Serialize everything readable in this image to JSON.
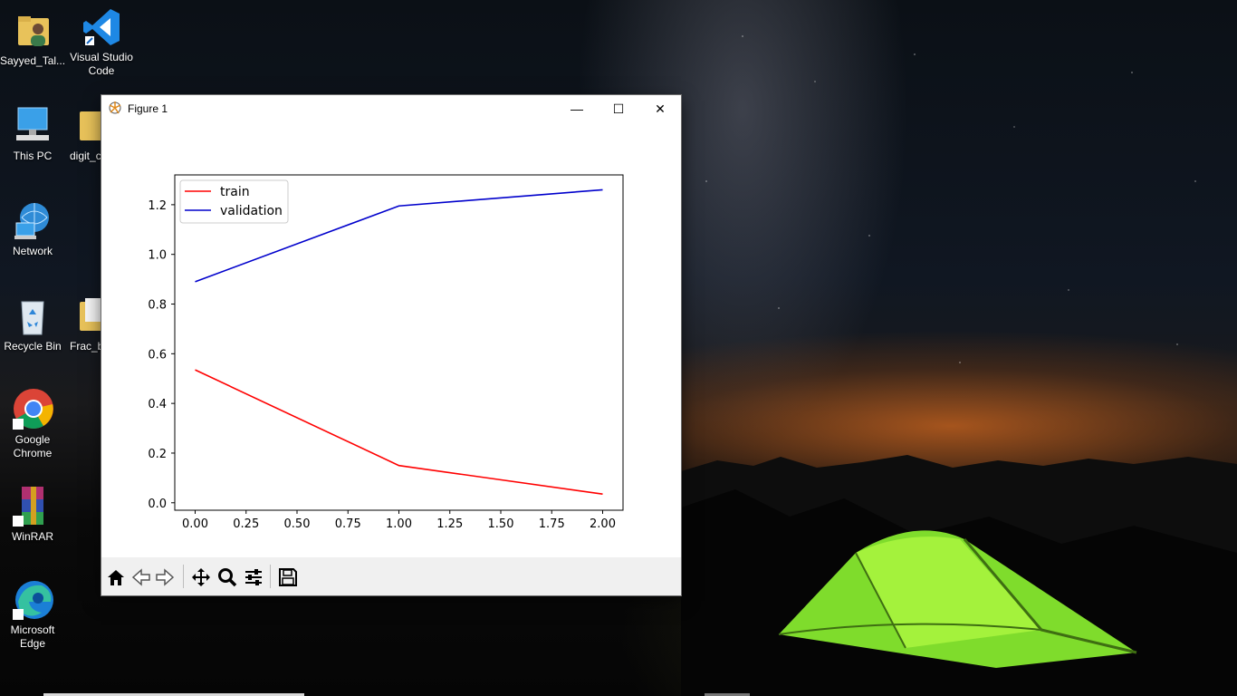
{
  "desktop": {
    "icons": [
      {
        "label": "Sayyed_Tal...",
        "icon": "user-folder-icon"
      },
      {
        "label": "Visual Studio Code",
        "icon": "vscode-icon"
      },
      {
        "label": "This PC",
        "icon": "computer-icon"
      },
      {
        "label": "digit_c",
        "icon": "folder-icon"
      },
      {
        "label": "Network",
        "icon": "network-icon"
      },
      {
        "label": "Recycle Bin",
        "icon": "recycle-bin-icon"
      },
      {
        "label": "Frac_b",
        "icon": "folder-icon"
      },
      {
        "label": "Google Chrome",
        "icon": "chrome-icon"
      },
      {
        "label": "WinRAR",
        "icon": "winrar-icon"
      },
      {
        "label": "Microsoft Edge",
        "icon": "edge-icon"
      }
    ]
  },
  "window": {
    "title": "Figure 1",
    "controls": {
      "minimize": "—",
      "maximize": "☐",
      "close": "✕"
    },
    "toolbar": [
      "home-icon",
      "back-icon",
      "forward-icon",
      "pan-icon",
      "zoom-icon",
      "configure-subplots-icon",
      "save-icon"
    ]
  },
  "chart_data": {
    "type": "line",
    "x": [
      0.0,
      1.0,
      2.0
    ],
    "series": [
      {
        "name": "train",
        "color": "#ff0000",
        "values": [
          0.535,
          0.15,
          0.035
        ]
      },
      {
        "name": "validation",
        "color": "#0000cc",
        "values": [
          0.89,
          1.195,
          1.26
        ]
      }
    ],
    "xlim": [
      -0.1,
      2.1
    ],
    "ylim": [
      -0.03,
      1.32
    ],
    "xticks": [
      0.0,
      0.25,
      0.5,
      0.75,
      1.0,
      1.25,
      1.5,
      1.75,
      2.0
    ],
    "xtick_labels": [
      "0.00",
      "0.25",
      "0.50",
      "0.75",
      "1.00",
      "1.25",
      "1.50",
      "1.75",
      "2.00"
    ],
    "yticks": [
      0.0,
      0.2,
      0.4,
      0.6,
      0.8,
      1.0,
      1.2
    ],
    "ytick_labels": [
      "0.0",
      "0.2",
      "0.4",
      "0.6",
      "0.8",
      "1.0",
      "1.2"
    ],
    "legend": "top-left",
    "grid": false
  }
}
